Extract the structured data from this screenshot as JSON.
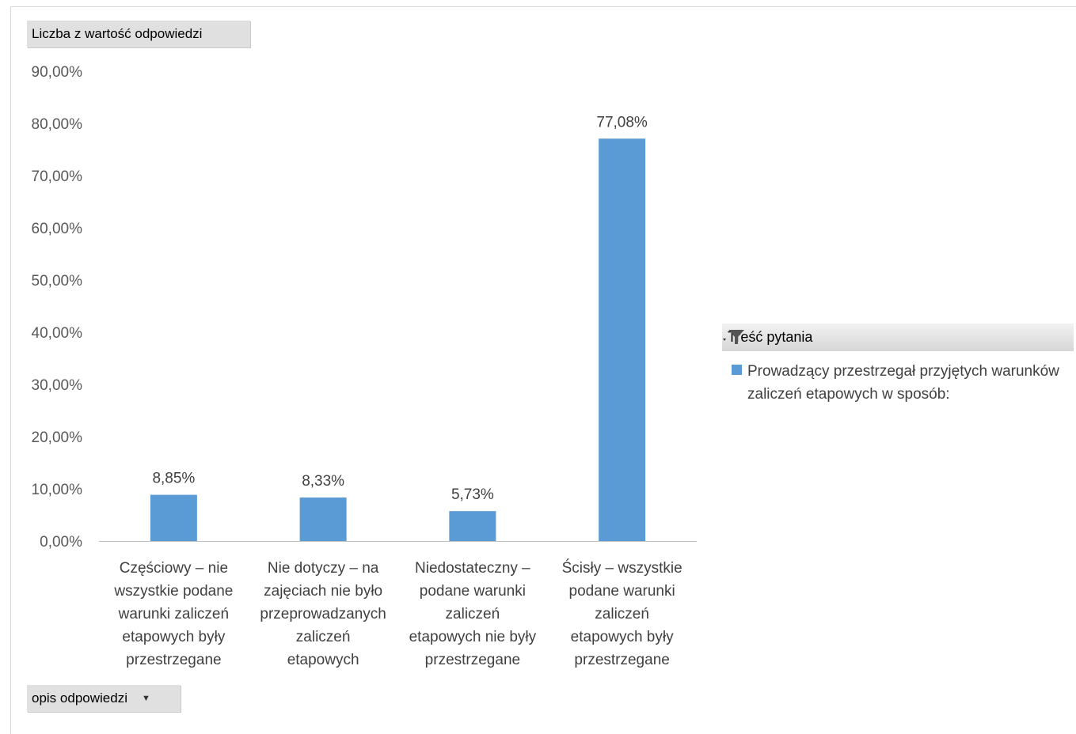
{
  "value_field_label": "Liczba z wartość odpowiedzi",
  "axis_field_label": "opis odpowiedzi",
  "legend": {
    "header": "Treść pytania",
    "item": "Prowadzący przestrzegał przyjętych warunków zaliczeń etapowych w sposób:"
  },
  "colors": {
    "bar": "#5b9bd5",
    "gridline_axis": "#bfbfbf"
  },
  "icons": {
    "filter": "filter-icon",
    "dropdown": "dropdown-arrow-icon"
  },
  "chart_data": {
    "type": "bar",
    "categories": [
      [
        "Częściowy – nie",
        "wszystkie podane",
        "warunki zaliczeń",
        "etapowych były",
        "przestrzegane"
      ],
      [
        "Nie dotyczy – na",
        "zajęciach nie było",
        "przeprowadzanych",
        "zaliczeń",
        "etapowych"
      ],
      [
        "Niedostateczny –",
        "podane warunki",
        "zaliczeń",
        "etapowych nie były",
        "przestrzegane"
      ],
      [
        "Ścisły – wszystkie",
        "podane warunki",
        "zaliczeń",
        "etapowych były",
        "przestrzegane"
      ]
    ],
    "series": [
      {
        "name": "Prowadzący przestrzegał przyjętych warunków zaliczeń etapowych w sposób:",
        "values": [
          8.85,
          8.33,
          5.73,
          77.08
        ]
      }
    ],
    "data_labels": [
      "8,85%",
      "8,33%",
      "5,73%",
      "77,08%"
    ],
    "y_ticks": [
      "0,00%",
      "10,00%",
      "20,00%",
      "30,00%",
      "40,00%",
      "50,00%",
      "60,00%",
      "70,00%",
      "80,00%",
      "90,00%"
    ],
    "ylim": [
      0,
      90
    ],
    "grid": false,
    "legend_position": "right"
  }
}
